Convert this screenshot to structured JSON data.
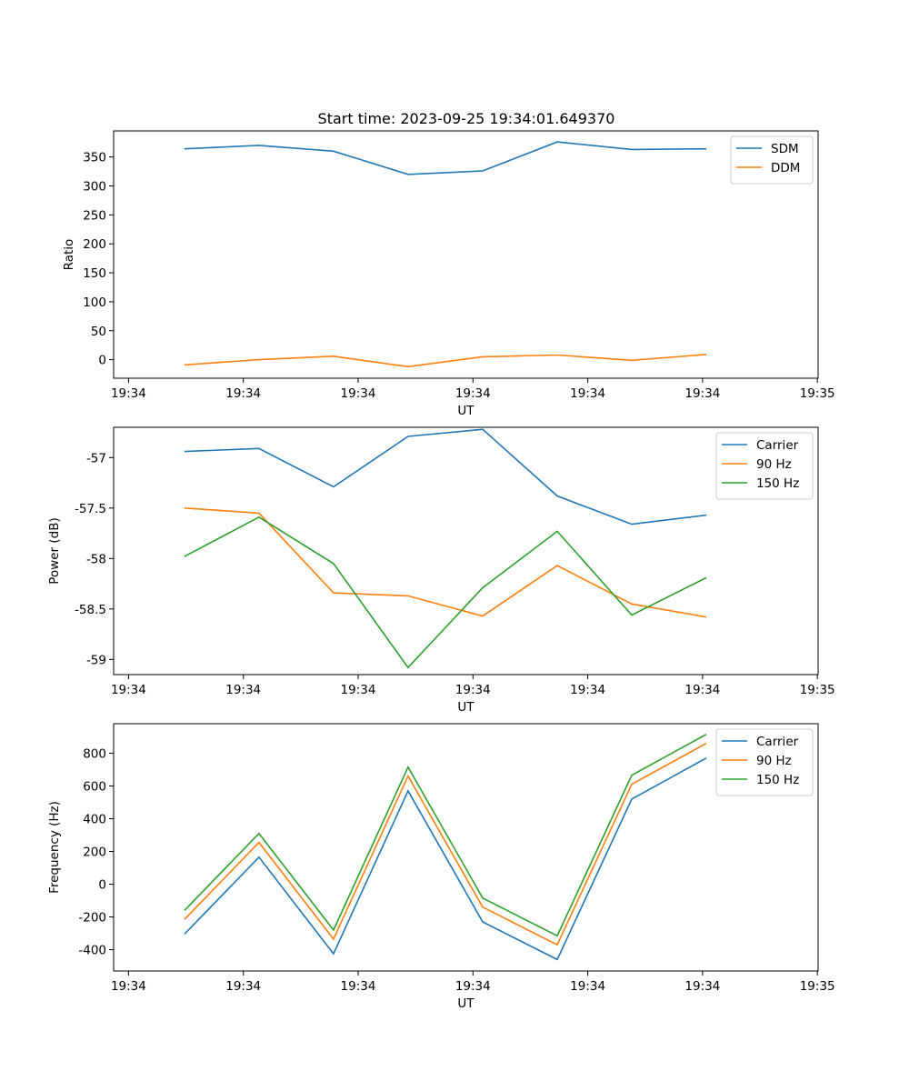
{
  "figure_title": "Start time: 2023-09-25 19:34:01.649370",
  "chart_data": [
    {
      "type": "line",
      "title": "Start time: 2023-09-25 19:34:01.649370",
      "xlabel": "UT",
      "ylabel": "Ratio",
      "x": [
        0,
        1,
        2,
        3,
        4,
        5,
        6,
        7
      ],
      "x_tick_values": [
        -0.75,
        0.79,
        2.33,
        3.87,
        5.41,
        6.95,
        8.49
      ],
      "x_tick_labels": [
        "19:34",
        "19:34",
        "19:34",
        "19:34",
        "19:34",
        "19:34",
        "19:35"
      ],
      "xlim": [
        -0.95,
        8.5
      ],
      "ylim": [
        -32,
        395
      ],
      "y_ticks": [
        0,
        50,
        100,
        150,
        200,
        250,
        300,
        350
      ],
      "legend": "top-right",
      "series": [
        {
          "name": "SDM",
          "color": "#1f77b4",
          "values": [
            364,
            370,
            360,
            320,
            326,
            376,
            363,
            364
          ]
        },
        {
          "name": "DDM",
          "color": "#ff7f0e",
          "values": [
            -9,
            0,
            6,
            -12,
            5,
            8,
            -1,
            9
          ]
        }
      ]
    },
    {
      "type": "line",
      "title": "",
      "xlabel": "UT",
      "ylabel": "Power (dB)",
      "x": [
        0,
        1,
        2,
        3,
        4,
        5,
        6,
        7
      ],
      "x_tick_values": [
        -0.75,
        0.79,
        2.33,
        3.87,
        5.41,
        6.95,
        8.49
      ],
      "x_tick_labels": [
        "19:34",
        "19:34",
        "19:34",
        "19:34",
        "19:34",
        "19:34",
        "19:35"
      ],
      "xlim": [
        -0.95,
        8.5
      ],
      "ylim": [
        -59.15,
        -56.7
      ],
      "y_ticks": [
        -59.0,
        -58.5,
        -58.0,
        -57.5,
        -57.0
      ],
      "legend": "top-right",
      "series": [
        {
          "name": "Carrier",
          "color": "#1f77b4",
          "values": [
            -56.94,
            -56.91,
            -57.29,
            -56.79,
            -56.72,
            -57.38,
            -57.66,
            -57.57
          ]
        },
        {
          "name": "90 Hz",
          "color": "#ff7f0e",
          "values": [
            -57.5,
            -57.55,
            -58.34,
            -58.37,
            -58.57,
            -58.07,
            -58.45,
            -58.58
          ]
        },
        {
          "name": "150 Hz",
          "color": "#2ca02c",
          "values": [
            -57.98,
            -57.59,
            -58.05,
            -59.08,
            -58.29,
            -57.73,
            -58.56,
            -58.19
          ]
        }
      ]
    },
    {
      "type": "line",
      "title": "",
      "xlabel": "UT",
      "ylabel": "Frequency (Hz)",
      "x": [
        0,
        1,
        2,
        3,
        4,
        5,
        6,
        7
      ],
      "x_tick_values": [
        -0.75,
        0.79,
        2.33,
        3.87,
        5.41,
        6.95,
        8.49
      ],
      "x_tick_labels": [
        "19:34",
        "19:34",
        "19:34",
        "19:34",
        "19:34",
        "19:34",
        "19:35"
      ],
      "xlim": [
        -0.95,
        8.5
      ],
      "ylim": [
        -530,
        980
      ],
      "y_ticks": [
        -400,
        -200,
        0,
        200,
        400,
        600,
        800
      ],
      "legend": "top-right",
      "series": [
        {
          "name": "Carrier",
          "color": "#1f77b4",
          "values": [
            -305,
            165,
            -425,
            570,
            -230,
            -460,
            520,
            770
          ]
        },
        {
          "name": "90 Hz",
          "color": "#ff7f0e",
          "values": [
            -215,
            255,
            -335,
            660,
            -140,
            -370,
            610,
            860
          ]
        },
        {
          "name": "150 Hz",
          "color": "#2ca02c",
          "values": [
            -160,
            310,
            -280,
            715,
            -85,
            -315,
            665,
            915
          ]
        }
      ]
    }
  ]
}
